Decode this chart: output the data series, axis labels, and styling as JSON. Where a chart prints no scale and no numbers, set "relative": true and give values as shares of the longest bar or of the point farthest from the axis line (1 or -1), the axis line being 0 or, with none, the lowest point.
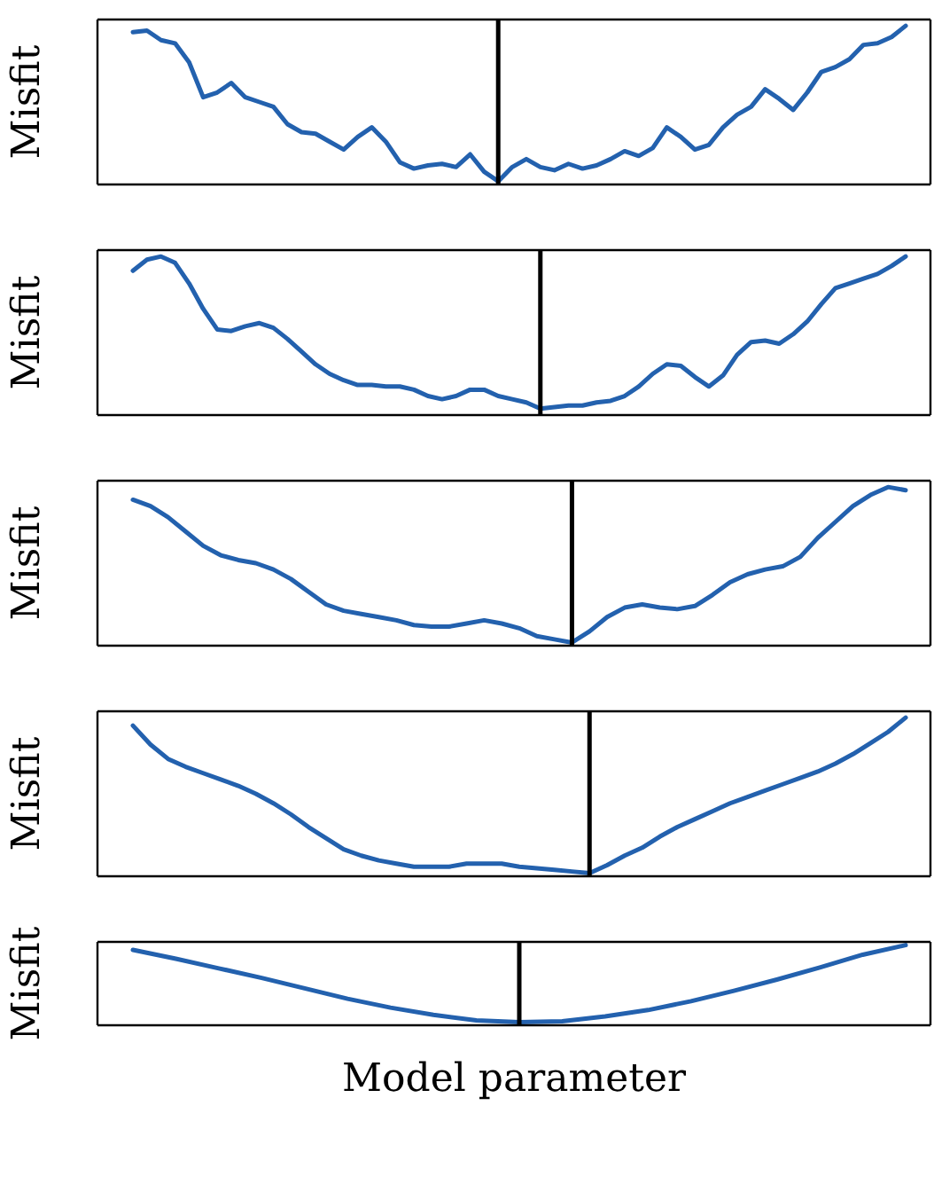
{
  "chart_data": [
    {
      "type": "line",
      "ylabel": "Misfit",
      "relative": true,
      "color": "#2361ae",
      "ref_lines": [
        {
          "axis": "x"
        }
      ],
      "categories": [
        null,
        null,
        null,
        null,
        null,
        null,
        null,
        null,
        null,
        null,
        null,
        null,
        null,
        null,
        null,
        null,
        null,
        null,
        null,
        null,
        null,
        null,
        null,
        null,
        null,
        null,
        null,
        null,
        null,
        null,
        null,
        null,
        null,
        null,
        null,
        null,
        null,
        null,
        null,
        null,
        null,
        null,
        null,
        null,
        null,
        null,
        null,
        null,
        null,
        null,
        null,
        null,
        null,
        null,
        null,
        null
      ],
      "values": [
        0.96,
        0.97,
        0.91,
        0.89,
        0.77,
        0.55,
        0.58,
        0.64,
        0.55,
        0.52,
        0.49,
        0.38,
        0.33,
        0.32,
        0.27,
        0.22,
        0.3,
        0.36,
        0.27,
        0.14,
        0.1,
        0.12,
        0.13,
        0.11,
        0.19,
        0.08,
        0.02,
        0.11,
        0.16,
        0.11,
        0.09,
        0.13,
        0.1,
        0.12,
        0.16,
        0.21,
        0.18,
        0.23,
        0.36,
        0.3,
        0.22,
        0.25,
        0.36,
        0.44,
        0.49,
        0.6,
        0.54,
        0.47,
        0.58,
        0.71,
        0.74,
        0.79,
        0.88,
        0.89,
        0.93,
        1
      ]
    },
    {
      "type": "line",
      "ylabel": "Misfit",
      "relative": true,
      "color": "#2361ae",
      "ref_lines": [
        {
          "axis": "x"
        }
      ],
      "categories": [
        null,
        null,
        null,
        null,
        null,
        null,
        null,
        null,
        null,
        null,
        null,
        null,
        null,
        null,
        null,
        null,
        null,
        null,
        null,
        null,
        null,
        null,
        null,
        null,
        null,
        null,
        null,
        null,
        null,
        null,
        null,
        null,
        null,
        null,
        null,
        null,
        null,
        null,
        null,
        null,
        null,
        null,
        null,
        null,
        null,
        null,
        null,
        null,
        null,
        null,
        null,
        null,
        null,
        null,
        null,
        null
      ],
      "values": [
        0.91,
        0.98,
        1,
        0.96,
        0.83,
        0.67,
        0.54,
        0.53,
        0.56,
        0.58,
        0.55,
        0.48,
        0.4,
        0.32,
        0.26,
        0.22,
        0.19,
        0.19,
        0.18,
        0.18,
        0.16,
        0.12,
        0.1,
        0.12,
        0.16,
        0.16,
        0.12,
        0.1,
        0.08,
        0.04,
        0.05,
        0.06,
        0.06,
        0.08,
        0.09,
        0.12,
        0.18,
        0.26,
        0.32,
        0.31,
        0.24,
        0.18,
        0.25,
        0.38,
        0.46,
        0.47,
        0.45,
        0.51,
        0.59,
        0.7,
        0.8,
        0.83,
        0.86,
        0.89,
        0.94,
        1
      ]
    },
    {
      "type": "line",
      "ylabel": "Misfit",
      "relative": true,
      "color": "#2361ae",
      "ref_lines": [
        {
          "axis": "x"
        }
      ],
      "categories": [
        null,
        null,
        null,
        null,
        null,
        null,
        null,
        null,
        null,
        null,
        null,
        null,
        null,
        null,
        null,
        null,
        null,
        null,
        null,
        null,
        null,
        null,
        null,
        null,
        null,
        null,
        null,
        null,
        null,
        null,
        null,
        null,
        null,
        null,
        null,
        null,
        null,
        null,
        null,
        null,
        null,
        null,
        null,
        null,
        null
      ],
      "values": [
        0.92,
        0.88,
        0.81,
        0.72,
        0.63,
        0.57,
        0.54,
        0.52,
        0.48,
        0.42,
        0.34,
        0.26,
        0.22,
        0.2,
        0.18,
        0.16,
        0.13,
        0.12,
        0.12,
        0.14,
        0.16,
        0.14,
        0.11,
        0.06,
        0.04,
        0.02,
        0.09,
        0.18,
        0.24,
        0.26,
        0.24,
        0.23,
        0.25,
        0.32,
        0.4,
        0.45,
        0.48,
        0.5,
        0.56,
        0.68,
        0.78,
        0.88,
        0.95,
        1,
        0.98
      ]
    },
    {
      "type": "line",
      "ylabel": "Misfit",
      "relative": true,
      "color": "#2361ae",
      "ref_lines": [
        {
          "axis": "x"
        }
      ],
      "categories": [
        null,
        null,
        null,
        null,
        null,
        null,
        null,
        null,
        null,
        null,
        null,
        null,
        null,
        null,
        null,
        null,
        null,
        null,
        null,
        null,
        null,
        null,
        null,
        null,
        null,
        null,
        null,
        null,
        null,
        null,
        null,
        null,
        null,
        null,
        null,
        null,
        null,
        null,
        null,
        null,
        null,
        null,
        null,
        null,
        null
      ],
      "values": [
        0.95,
        0.83,
        0.74,
        0.69,
        0.65,
        0.61,
        0.57,
        0.52,
        0.46,
        0.39,
        0.31,
        0.24,
        0.17,
        0.13,
        0.1,
        0.08,
        0.06,
        0.06,
        0.06,
        0.08,
        0.08,
        0.08,
        0.06,
        0.05,
        0.04,
        0.03,
        0.02,
        0.07,
        0.13,
        0.18,
        0.25,
        0.31,
        0.36,
        0.41,
        0.46,
        0.5,
        0.54,
        0.58,
        0.62,
        0.66,
        0.71,
        0.77,
        0.84,
        0.91,
        1
      ]
    },
    {
      "type": "line",
      "ylabel": "Misfit",
      "xlabel": "Model parameter",
      "relative": true,
      "color": "#2361ae",
      "ref_lines": [
        {
          "axis": "x"
        }
      ],
      "categories": [
        null,
        null,
        null,
        null,
        null,
        null,
        null,
        null,
        null,
        null,
        null,
        null,
        null,
        null,
        null,
        null,
        null,
        null,
        null
      ],
      "values": [
        0.94,
        0.83,
        0.71,
        0.59,
        0.46,
        0.33,
        0.22,
        0.13,
        0.06,
        0.04,
        0.05,
        0.11,
        0.19,
        0.3,
        0.43,
        0.57,
        0.72,
        0.88,
        1
      ]
    }
  ]
}
